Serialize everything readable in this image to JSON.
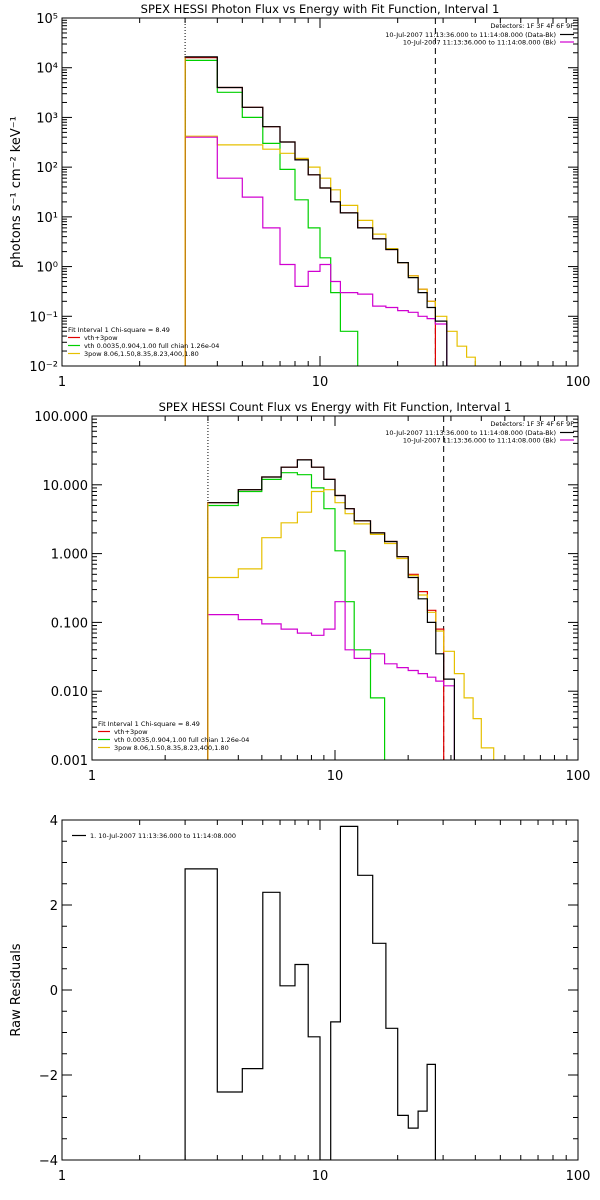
{
  "colors": {
    "background": "#ffffff",
    "axes": "#000000",
    "data": "#000000",
    "total_fit": "#e00000",
    "thermal": "#00d000",
    "power_law": "#e6c000",
    "background_fit": "#d000d0",
    "lower_limit": "#e6a000"
  },
  "chart_data": [
    {
      "type": "line",
      "title": "SPEX HESSI Photon Flux vs Energy with Fit Function, Interval 1",
      "xlabel": "",
      "ylabel": "photons s⁻¹ cm⁻² keV⁻¹",
      "xscale": "log",
      "yscale": "log",
      "xlim": [
        1,
        100
      ],
      "ylim": [
        0.01,
        100000
      ],
      "xticks": [
        {
          "v": 1,
          "label": "1"
        },
        {
          "v": 10,
          "label": "10"
        },
        {
          "v": 100,
          "label": "100"
        }
      ],
      "yticks": [
        {
          "v": 0.01,
          "label": "10⁻²"
        },
        {
          "v": 0.1,
          "label": "10⁻¹"
        },
        {
          "v": 1,
          "label": "10⁰"
        },
        {
          "v": 10,
          "label": "10¹"
        },
        {
          "v": 100,
          "label": "10²"
        },
        {
          "v": 1000,
          "label": "10³"
        },
        {
          "v": 10000,
          "label": "10⁴"
        },
        {
          "v": 100000,
          "label": "10⁵"
        }
      ],
      "vlines": [
        {
          "x": 3,
          "style": "dotted"
        },
        {
          "x": 28,
          "style": "dashed"
        }
      ],
      "legend_top": {
        "header": "Detectors: 1F 3F 4F 6F 9F",
        "lines": [
          {
            "text": "10-Jul-2007 11:13:36.000 to 11:14:08.000 (Data-Bk)",
            "color": "#000000"
          },
          {
            "text": "10-Jul-2007 11:13:36.000 to 11:14:08.000 (Bk)",
            "color": "#d000d0"
          }
        ]
      },
      "legend_bottom": {
        "header": "Fit Interval  1    Chi-square = 8.49",
        "lines": [
          {
            "text": "vth+3pow",
            "color": "#e00000"
          },
          {
            "text": "vth 0.0035,0.904,1.00  full chian 1.26e-04",
            "color": "#00d000"
          },
          {
            "text": "3pow 8.06,1.50,8.35,8.23,400,1.80",
            "color": "#e6c000"
          }
        ]
      },
      "edges": [
        3,
        4,
        5,
        6,
        7,
        8,
        9,
        10,
        11,
        12,
        14,
        16,
        18,
        20,
        22,
        24,
        26,
        28,
        31,
        34,
        37,
        40,
        45
      ],
      "series": [
        {
          "name": "vth+3pow",
          "color": "#e00000",
          "values": [
            16000,
            4000,
            1600,
            650,
            320,
            140,
            70,
            38,
            20,
            12,
            6,
            3.6,
            2.2,
            1.2,
            0.65,
            0.35,
            0.2,
            null,
            null,
            null,
            null,
            null
          ]
        },
        {
          "name": "vth",
          "color": "#00d000",
          "values": [
            14000,
            3200,
            1000,
            300,
            90,
            22,
            6,
            1.5,
            0.3,
            0.05,
            0.01,
            null,
            null,
            null,
            null,
            null,
            null,
            null,
            null,
            null,
            null,
            null
          ]
        },
        {
          "name": "3pow",
          "color": "#e6c000",
          "values": [
            420,
            280,
            280,
            230,
            190,
            150,
            100,
            60,
            35,
            17,
            8.5,
            4.5,
            2.3,
            1.2,
            0.65,
            0.35,
            0.2,
            0.1,
            0.05,
            0.025,
            0.015,
            0.01
          ]
        },
        {
          "name": "Bk",
          "color": "#d000d0",
          "values": [
            400,
            60,
            25,
            6,
            1.1,
            0.4,
            0.8,
            1.1,
            0.5,
            0.3,
            0.28,
            0.16,
            0.15,
            0.13,
            0.12,
            0.1,
            0.09,
            0.07,
            null,
            null,
            null,
            null
          ]
        },
        {
          "name": "Data-Bk",
          "color": "#000000",
          "values": [
            16500,
            4000,
            1600,
            650,
            320,
            140,
            70,
            38,
            20,
            12,
            6,
            3.6,
            2.2,
            1.2,
            0.6,
            0.3,
            0.15,
            0.08,
            null,
            null,
            null,
            null
          ]
        }
      ]
    },
    {
      "type": "line",
      "title": "SPEX HESSI Count Flux vs Energy with Fit Function, Interval 1",
      "xlabel": "",
      "ylabel": "",
      "xscale": "log",
      "yscale": "log",
      "xlim": [
        1,
        100
      ],
      "ylim": [
        0.001,
        100
      ],
      "xticks": [
        {
          "v": 1,
          "label": "1"
        },
        {
          "v": 10,
          "label": "10"
        },
        {
          "v": 100,
          "label": "100"
        }
      ],
      "yticks": [
        {
          "v": 0.001,
          "label": "0.001"
        },
        {
          "v": 0.01,
          "label": "0.010"
        },
        {
          "v": 0.1,
          "label": "0.100"
        },
        {
          "v": 1,
          "label": "1.000"
        },
        {
          "v": 10,
          "label": "10.000"
        },
        {
          "v": 100,
          "label": "100.000"
        }
      ],
      "vlines": [
        {
          "x": 3,
          "style": "dotted"
        },
        {
          "x": 28,
          "style": "dashed"
        }
      ],
      "legend_top": {
        "header": "Detectors: 1F 3F 4F 6F 9F",
        "lines": [
          {
            "text": "10-Jul-2007 11:13:36.000 to 11:14:08.000 (Data-Bk)",
            "color": "#000000"
          },
          {
            "text": "10-Jul-2007 11:13:36.000 to 11:14:08.000 (Bk)",
            "color": "#d000d0"
          }
        ]
      },
      "legend_bottom": {
        "header": "Fit Interval  1    Chi-square = 8.49",
        "lines": [
          {
            "text": "vth+3pow",
            "color": "#e00000"
          },
          {
            "text": "vth 0.0035,0.904,1.00  full chian 1.26e-04",
            "color": "#00d000"
          },
          {
            "text": "3pow 8.06,1.50,8.35,8.23,400,1.80",
            "color": "#e6c000"
          }
        ]
      },
      "edges": [
        3,
        4,
        5,
        6,
        7,
        8,
        9,
        10,
        11,
        12,
        14,
        16,
        18,
        20,
        22,
        24,
        26,
        28,
        31,
        34,
        37,
        40,
        45
      ],
      "series": [
        {
          "name": "vth+3pow",
          "color": "#e00000",
          "values": [
            5.5,
            8.5,
            13,
            18,
            23,
            18,
            12,
            7,
            4.5,
            3,
            2,
            1.5,
            0.9,
            0.5,
            0.28,
            0.15,
            0.08,
            null,
            null,
            null,
            null,
            null
          ]
        },
        {
          "name": "vth",
          "color": "#00d000",
          "values": [
            5,
            8,
            12,
            15,
            14,
            9,
            4.5,
            1.1,
            0.2,
            0.04,
            0.008,
            0.001,
            null,
            null,
            null,
            null,
            null,
            null,
            null,
            null,
            null,
            null
          ]
        },
        {
          "name": "3pow",
          "color": "#e6c000",
          "values": [
            0.45,
            0.6,
            1.7,
            2.8,
            4,
            8,
            8.5,
            5.5,
            3.8,
            2.7,
            1.9,
            1.4,
            0.85,
            0.48,
            0.25,
            0.14,
            0.075,
            0.038,
            0.018,
            0.008,
            0.004,
            0.0015
          ]
        },
        {
          "name": "Bk",
          "color": "#d000d0",
          "values": [
            0.13,
            0.11,
            0.095,
            0.08,
            0.07,
            0.065,
            0.08,
            0.2,
            0.04,
            0.03,
            0.035,
            0.025,
            0.022,
            0.02,
            0.018,
            0.016,
            0.014,
            0.012,
            null,
            null,
            null,
            null
          ]
        },
        {
          "name": "Data-Bk",
          "color": "#000000",
          "values": [
            5.5,
            8.5,
            13,
            18,
            23,
            18,
            12,
            7,
            4.5,
            3,
            2,
            1.5,
            0.9,
            0.45,
            0.22,
            0.1,
            0.035,
            0.015,
            null,
            null,
            null,
            null
          ]
        }
      ]
    },
    {
      "type": "line",
      "title": "",
      "xlabel": "",
      "ylabel": "Raw Residuals",
      "xscale": "log",
      "yscale": "linear",
      "xlim": [
        1,
        100
      ],
      "ylim": [
        -4,
        4
      ],
      "xticks": [
        {
          "v": 1,
          "label": "1"
        },
        {
          "v": 10,
          "label": "10"
        },
        {
          "v": 100,
          "label": "100"
        }
      ],
      "yticks": [
        {
          "v": -4,
          "label": "−4"
        },
        {
          "v": -2,
          "label": "−2"
        },
        {
          "v": 0,
          "label": "0"
        },
        {
          "v": 2,
          "label": "2"
        },
        {
          "v": 4,
          "label": "4"
        }
      ],
      "vlines": [],
      "legend_top_left": {
        "lines": [
          {
            "text": "1. 10-Jul-2007 11:13:36.000 to 11:14:08.000",
            "color": "#000000"
          }
        ]
      },
      "edges": [
        3,
        4,
        5,
        6,
        7,
        8,
        9,
        10,
        11,
        12,
        14,
        16,
        18,
        20,
        22,
        24,
        26,
        28
      ],
      "series": [
        {
          "name": "1. 10-Jul-2007 11:13:36.000 to 11:14:08.000",
          "color": "#000000",
          "values": [
            2.85,
            -2.4,
            -1.85,
            2.3,
            0.1,
            0.6,
            -1.1,
            -4.0,
            -0.75,
            3.85,
            2.7,
            1.1,
            -0.9,
            -2.95,
            -3.25,
            -2.85,
            -1.75
          ]
        }
      ]
    }
  ]
}
